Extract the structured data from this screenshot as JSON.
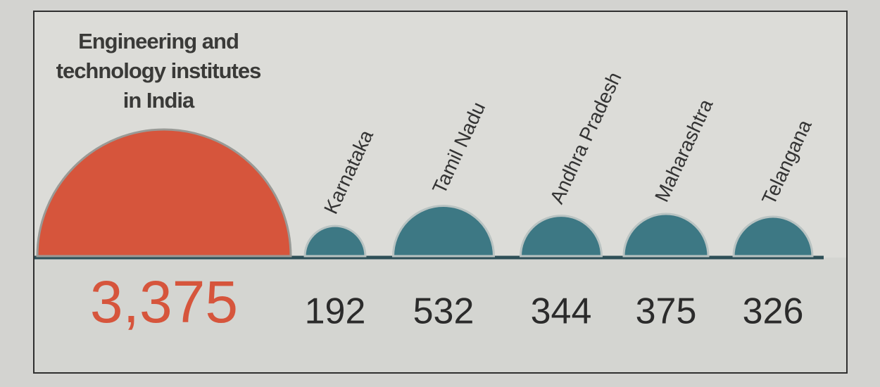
{
  "chart_data": {
    "type": "semicircle",
    "title": "Engineering and technology institutes in India",
    "total": {
      "value": 3375,
      "label": "3,375",
      "color": "#d6553c"
    },
    "categories": [
      "Karnataka",
      "Tamil Nadu",
      "Andhra Pradesh",
      "Maharashtra",
      "Telangana"
    ],
    "values": [
      192,
      532,
      344,
      375,
      326
    ],
    "color": "#3d7884"
  }
}
